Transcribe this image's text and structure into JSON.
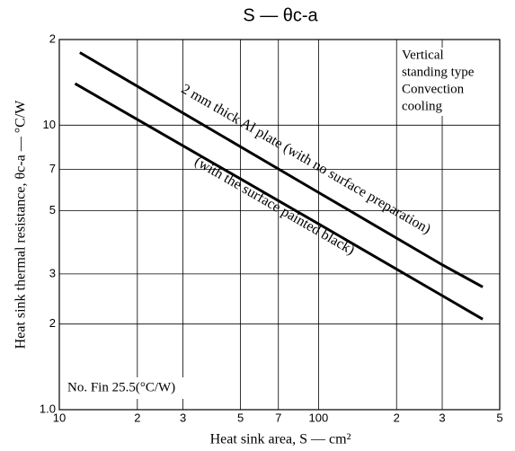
{
  "chart_data": {
    "type": "line",
    "title": "S — θc-a",
    "x_label": "Heat sink area, S — cm²",
    "y_label": "Heat sink thermal resistance, θc-a — °C/W",
    "log_x": true,
    "log_y": true,
    "grid": true,
    "xlim": [
      10,
      500
    ],
    "ylim": [
      1,
      20
    ],
    "xticks": [
      10,
      {
        "value": 20,
        "label": "2"
      },
      {
        "value": 30,
        "label": "3"
      },
      {
        "value": 50,
        "label": "5"
      },
      {
        "value": 70,
        "label": "7"
      },
      100,
      {
        "value": 200,
        "label": "2"
      },
      {
        "value": 300,
        "label": "3"
      },
      {
        "value": 500,
        "label": "5"
      }
    ],
    "yticks": [
      {
        "value": 1,
        "label": "1.0"
      },
      2,
      3,
      5,
      7,
      10,
      {
        "value": 20,
        "label": "2"
      }
    ],
    "series": [
      {
        "name": "2 mm thick Al plate (with no surface preparation)",
        "color": "#000000",
        "x": [
          12,
          100,
          300,
          430
        ],
        "values": [
          18,
          5.8,
          3.23,
          2.7
        ]
      },
      {
        "name": "(with the surface painted black)",
        "color": "#000000",
        "x": [
          11.5,
          100,
          430
        ],
        "values": [
          14,
          4.5,
          2.08
        ]
      }
    ],
    "note_lines": [
      "Vertical",
      "standing type",
      "Convection",
      "cooling"
    ],
    "fin_note": "No. Fin 25.5(°C/W)"
  }
}
